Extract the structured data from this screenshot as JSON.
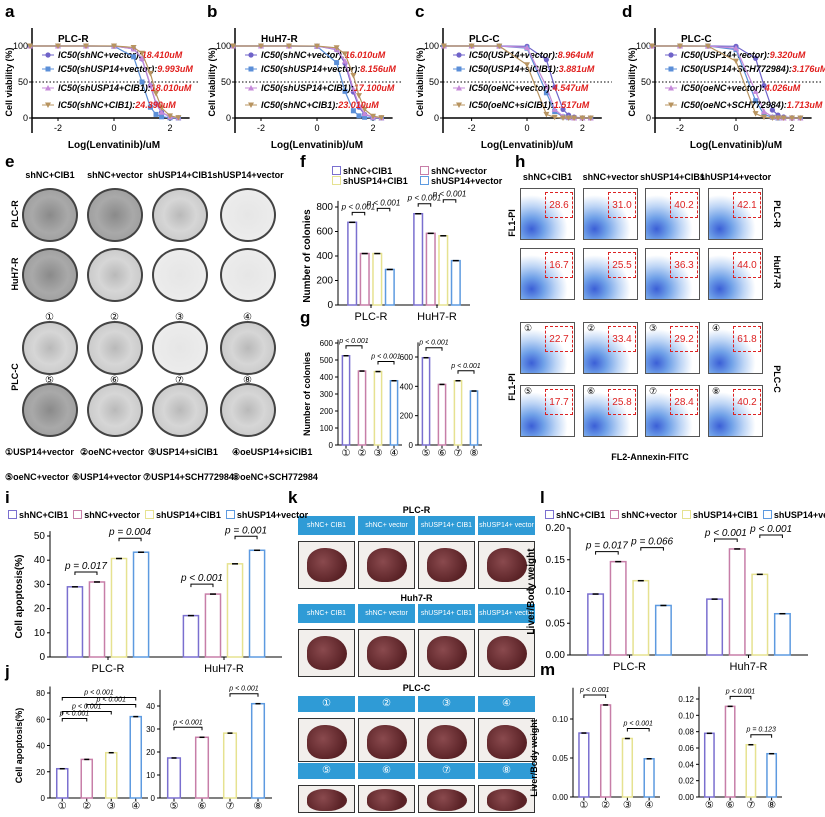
{
  "panel_labels": {
    "a": "a",
    "b": "b",
    "c": "c",
    "d": "d",
    "e": "e",
    "f": "f",
    "g": "g",
    "h": "h",
    "i": "i",
    "j": "j",
    "k": "k",
    "l": "l",
    "m": "m"
  },
  "chart_data": [
    {
      "id": "a",
      "type": "line",
      "title": "PLC-R",
      "xlabel": "Log(Lenvatinib)/uM",
      "ylabel": "Cell viability (%)",
      "xlim": [
        -3,
        2.7
      ],
      "ylim": [
        0,
        120
      ],
      "xticks": [
        "-2",
        "0",
        "2"
      ],
      "yticks": [
        "0",
        "50",
        "100"
      ],
      "reference_line": 50,
      "x": [
        -3,
        -2,
        -1,
        0,
        0.7,
        1,
        1.3,
        1.5,
        1.7,
        2,
        2.3
      ],
      "series": [
        {
          "name": "IC50(shNC+vector)",
          "ic50": "18.410uM",
          "color": "#6f63c9",
          "marker": "circle",
          "y": [
            100,
            100,
            100,
            99.9,
            96,
            82,
            45,
            20,
            8,
            1.5,
            0.3
          ]
        },
        {
          "name": "IC50(shUSP14+vector)",
          "ic50": "9.993uM",
          "color": "#5b8fd8",
          "marker": "square",
          "y": [
            100,
            100,
            100,
            99.7,
            85,
            50,
            15,
            5,
            1.7,
            0.3,
            0
          ]
        },
        {
          "name": "IC50(shUSP14+CIB1)",
          "ic50": "18.010uM",
          "color": "#c58ad9",
          "marker": "triangle-up",
          "y": [
            100,
            100,
            100,
            99.9,
            96,
            83,
            46,
            21,
            8,
            1.5,
            0.3
          ]
        },
        {
          "name": "IC50(shNC+CIB1)",
          "ic50": "24.390uM",
          "color": "#b89460",
          "marker": "triangle-down",
          "y": [
            100,
            100,
            100,
            100,
            98,
            90,
            62,
            34,
            14,
            3,
            0.5
          ]
        }
      ]
    },
    {
      "id": "b",
      "type": "line",
      "title": "HuH7-R",
      "xlabel": "Log(Lenvatinib)/uM",
      "ylabel": "Cell viability (%)",
      "xlim": [
        -3,
        2.7
      ],
      "ylim": [
        0,
        120
      ],
      "xticks": [
        "-2",
        "0",
        "2"
      ],
      "yticks": [
        "0",
        "50",
        "100"
      ],
      "reference_line": 50,
      "x": [
        -3,
        -2,
        -1,
        0,
        0.7,
        1,
        1.3,
        1.5,
        1.7,
        2,
        2.3
      ],
      "series": [
        {
          "name": "IC50(shNC+vector)",
          "ic50": "16.010uM",
          "color": "#6f63c9",
          "marker": "circle",
          "y": [
            100,
            100,
            100,
            99.9,
            95,
            76,
            36,
            15,
            5,
            1,
            0.2
          ]
        },
        {
          "name": "IC50(shUSP14+vector)",
          "ic50": "8.156uM",
          "color": "#5b8fd8",
          "marker": "square",
          "y": [
            100,
            100,
            100,
            99.5,
            77,
            37,
            10,
            3,
            1,
            0.2,
            0
          ]
        },
        {
          "name": "IC50(shUSP14+CIB1)",
          "ic50": "17.100uM",
          "color": "#c58ad9",
          "marker": "triangle-up",
          "y": [
            100,
            100,
            100,
            99.9,
            95.5,
            79,
            40,
            18,
            6,
            1,
            0.2
          ]
        },
        {
          "name": "IC50(shNC+CIB1)",
          "ic50": "23.010uM",
          "color": "#b89460",
          "marker": "triangle-down",
          "y": [
            100,
            100,
            100,
            99.9,
            97.5,
            89,
            59,
            31,
            12,
            2.5,
            0.5
          ]
        }
      ]
    },
    {
      "id": "c",
      "type": "line",
      "title": "PLC-C",
      "xlabel": "Log(Lenvatinib)/uM",
      "ylabel": "Cell viability (%)",
      "xlim": [
        -3,
        2.7
      ],
      "ylim": [
        0,
        120
      ],
      "xticks": [
        "-2",
        "0",
        "2"
      ],
      "yticks": [
        "0",
        "50",
        "100"
      ],
      "reference_line": 50,
      "x": [
        -3,
        -2,
        -1,
        0,
        0.7,
        1,
        1.3,
        1.5,
        1.7,
        2,
        2.3
      ],
      "series": [
        {
          "name": "IC50(USP14+vector)",
          "ic50": "8.964uM",
          "color": "#6f63c9",
          "marker": "circle",
          "y": [
            100,
            100,
            100,
            99.6,
            81,
            43,
            12,
            4,
            1.3,
            0.2,
            0
          ]
        },
        {
          "name": "IC50(USP14+siCIB1)",
          "ic50": "3.881uM",
          "color": "#5b8fd8",
          "marker": "square",
          "y": [
            100,
            100,
            99.9,
            97,
            35,
            9,
            1.6,
            0.5,
            0,
            0,
            0
          ]
        },
        {
          "name": "IC50(oeNC+vector)",
          "ic50": "4.547uM",
          "color": "#c58ad9",
          "marker": "triangle-up",
          "y": [
            100,
            100,
            99.9,
            98,
            44,
            12,
            2.4,
            0.8,
            0,
            0,
            0
          ]
        },
        {
          "name": "IC50(oeNC+siCIB1)",
          "ic50": "1.517uM",
          "color": "#b89460",
          "marker": "triangle-down",
          "y": [
            100,
            100,
            99.9,
            74,
            5,
            1,
            0,
            0,
            0,
            0,
            0
          ]
        }
      ]
    },
    {
      "id": "d",
      "type": "line",
      "title": "PLC-C",
      "xlabel": "Log(Lenvatinib)/uM",
      "ylabel": "Cell viability (%)",
      "xlim": [
        -3,
        2.7
      ],
      "ylim": [
        0,
        120
      ],
      "xticks": [
        "-2",
        "0",
        "2"
      ],
      "yticks": [
        "0",
        "50",
        "100"
      ],
      "reference_line": 50,
      "x": [
        -3,
        -2,
        -1,
        0,
        0.7,
        1,
        1.3,
        1.5,
        1.7,
        2,
        2.3
      ],
      "series": [
        {
          "name": "IC50(USP14+vector)",
          "ic50": "9.320uM",
          "color": "#6f63c9",
          "marker": "circle",
          "y": [
            100,
            100,
            100,
            99.6,
            83,
            45,
            11,
            4,
            1.5,
            0.3,
            0
          ]
        },
        {
          "name": "IC50(USP14+SCH772984)",
          "ic50": "3.176uM",
          "color": "#5b8fd8",
          "marker": "square",
          "y": [
            100,
            100,
            99.9,
            95,
            24,
            5,
            1,
            0,
            0,
            0,
            0
          ]
        },
        {
          "name": "IC50(oeNC+vector)",
          "ic50": "4.026uM",
          "color": "#c58ad9",
          "marker": "triangle-up",
          "y": [
            100,
            100,
            99.9,
            97,
            37,
            9,
            1.8,
            0.5,
            0,
            0,
            0
          ]
        },
        {
          "name": "IC50(oeNC+SCH772984)",
          "ic50": "1.713uM",
          "color": "#b89460",
          "marker": "triangle-down",
          "y": [
            100,
            100,
            99.9,
            79,
            6,
            1.2,
            0,
            0,
            0,
            0,
            0
          ]
        }
      ]
    },
    {
      "id": "f",
      "type": "bar",
      "ylabel": "Number of colonies",
      "ylim": [
        0,
        850
      ],
      "yticks": [
        0,
        200,
        400,
        600,
        800
      ],
      "categories": [
        "PLC-R",
        "HuH7-R"
      ],
      "legend": "top",
      "series": [
        {
          "name": "shNC+CIB1",
          "color": "#7a6fcf",
          "values": [
            675,
            745
          ]
        },
        {
          "name": "shNC+vector",
          "color": "#c77ea8",
          "values": [
            420,
            585
          ]
        },
        {
          "name": "shUSP14+CIB1",
          "color": "#e6e290",
          "values": [
            420,
            565
          ]
        },
        {
          "name": "shUSP14+vector",
          "color": "#5d9ae0",
          "values": [
            290,
            362
          ]
        }
      ],
      "comparisons": [
        {
          "group": 0,
          "bars": [
            0,
            1
          ],
          "label": "p < 0.001"
        },
        {
          "group": 0,
          "bars": [
            2,
            3
          ],
          "label": "p < 0.001"
        },
        {
          "group": 1,
          "bars": [
            0,
            1
          ],
          "label": "p < 0.001"
        },
        {
          "group": 1,
          "bars": [
            2,
            3
          ],
          "label": "p < 0.001"
        }
      ]
    },
    {
      "id": "g1",
      "type": "bar",
      "ylabel": "Number of colonies",
      "ylim": [
        0,
        620
      ],
      "yticks": [
        0,
        100,
        200,
        300,
        400,
        500,
        600
      ],
      "categories": [
        "①",
        "②",
        "③",
        "④"
      ],
      "bar_colors": [
        "#7a6fcf",
        "#c77ea8",
        "#e6e290",
        "#5d9ae0"
      ],
      "series": [
        {
          "values": [
            525,
            435,
            432,
            378
          ]
        }
      ],
      "comparisons": [
        {
          "bars": [
            0,
            1
          ],
          "label": "p < 0.001"
        },
        {
          "bars": [
            2,
            3
          ],
          "label": "p < 0.001"
        }
      ]
    },
    {
      "id": "g2",
      "type": "bar",
      "ylabel": "",
      "ylim": [
        0,
        700
      ],
      "yticks": [
        0,
        200,
        400,
        600
      ],
      "categories": [
        "⑤",
        "⑥",
        "⑦",
        "⑧"
      ],
      "bar_colors": [
        "#7a6fcf",
        "#c77ea8",
        "#e6e290",
        "#5d9ae0"
      ],
      "series": [
        {
          "values": [
            595,
            413,
            438,
            368
          ]
        }
      ],
      "comparisons": [
        {
          "bars": [
            0,
            1
          ],
          "label": "p < 0.001"
        },
        {
          "bars": [
            2,
            3
          ],
          "label": "p < 0.001"
        }
      ]
    },
    {
      "id": "i",
      "type": "bar",
      "ylabel": "Cell apoptosis(%)",
      "ylim": [
        0,
        52
      ],
      "yticks": [
        0,
        10,
        20,
        30,
        40,
        50
      ],
      "categories": [
        "PLC-R",
        "HuH7-R"
      ],
      "legend": "top",
      "series": [
        {
          "name": "shNC+CIB1",
          "color": "#7a6fcf",
          "values": [
            29,
            17.1
          ]
        },
        {
          "name": "shNC+vector",
          "color": "#c77ea8",
          "values": [
            31,
            26
          ]
        },
        {
          "name": "shUSP14+CIB1",
          "color": "#e6e290",
          "values": [
            40.7,
            38.5
          ]
        },
        {
          "name": "shUSP14+vector",
          "color": "#5d9ae0",
          "values": [
            43.3,
            44.1
          ]
        }
      ],
      "comparisons": [
        {
          "group": 0,
          "bars": [
            0,
            1
          ],
          "label": "p = 0.017"
        },
        {
          "group": 0,
          "bars": [
            2,
            3
          ],
          "label": "p = 0.004"
        },
        {
          "group": 1,
          "bars": [
            0,
            1
          ],
          "label": "p < 0.001"
        },
        {
          "group": 1,
          "bars": [
            2,
            3
          ],
          "label": "p = 0.001"
        }
      ]
    },
    {
      "id": "j1",
      "type": "bar",
      "ylabel": "Cell apoptosis(%)",
      "ylim": [
        0,
        85
      ],
      "yticks": [
        0,
        20,
        40,
        60,
        80
      ],
      "categories": [
        "①",
        "②",
        "③",
        "④"
      ],
      "bar_colors": [
        "#7a6fcf",
        "#c77ea8",
        "#e6e290",
        "#5d9ae0"
      ],
      "series": [
        {
          "values": [
            22.3,
            29.4,
            34.5,
            62
          ]
        }
      ],
      "comparisons": [
        {
          "bars": [
            0,
            1
          ],
          "label": "p < 0.001"
        },
        {
          "bars": [
            0,
            2
          ],
          "label": "p < 0.001"
        },
        {
          "bars": [
            1,
            3
          ],
          "label": "p < 0.001"
        },
        {
          "bars": [
            0,
            3
          ],
          "label": "p < 0.001"
        }
      ]
    },
    {
      "id": "j2",
      "type": "bar",
      "ylabel": "",
      "ylim": [
        0,
        47
      ],
      "yticks": [
        0,
        10,
        20,
        30,
        40
      ],
      "categories": [
        "⑤",
        "⑥",
        "⑦",
        "⑧"
      ],
      "bar_colors": [
        "#7a6fcf",
        "#c77ea8",
        "#e6e290",
        "#5d9ae0"
      ],
      "series": [
        {
          "values": [
            17.4,
            26.4,
            28.2,
            41
          ]
        }
      ],
      "comparisons": [
        {
          "bars": [
            0,
            1
          ],
          "label": "p < 0.001"
        },
        {
          "bars": [
            2,
            3
          ],
          "label": "p < 0.001"
        }
      ]
    },
    {
      "id": "l",
      "type": "bar",
      "ylabel": "Liver/Body weight",
      "ylim": [
        0,
        0.2
      ],
      "yticks": [
        "0.00",
        "0.05",
        "0.10",
        "0.15",
        "0.20"
      ],
      "categories": [
        "PLC-R",
        "Huh7-R"
      ],
      "legend": "top",
      "series": [
        {
          "name": "shNC+CIB1",
          "color": "#7a6fcf",
          "values": [
            0.096,
            0.088
          ]
        },
        {
          "name": "shNC+vector",
          "color": "#c77ea8",
          "values": [
            0.147,
            0.167
          ]
        },
        {
          "name": "shUSP14+CIB1",
          "color": "#e6e290",
          "values": [
            0.117,
            0.127
          ]
        },
        {
          "name": "shUSP14+vector",
          "color": "#5d9ae0",
          "values": [
            0.078,
            0.065
          ]
        }
      ],
      "comparisons": [
        {
          "group": 0,
          "bars": [
            0,
            1
          ],
          "label": "p = 0.017"
        },
        {
          "group": 0,
          "bars": [
            2,
            3
          ],
          "label": "p = 0.066"
        },
        {
          "group": 1,
          "bars": [
            0,
            1
          ],
          "label": "p < 0.001"
        },
        {
          "group": 1,
          "bars": [
            2,
            3
          ],
          "label": "p < 0.001"
        }
      ]
    },
    {
      "id": "m1",
      "type": "bar",
      "ylabel": "Liver/Body weight",
      "ylim": [
        0,
        0.14
      ],
      "yticks": [
        "0.00",
        "0.05",
        "0.10"
      ],
      "categories": [
        "①",
        "②",
        "③",
        "④"
      ],
      "bar_colors": [
        "#7a6fcf",
        "#c77ea8",
        "#e6e290",
        "#5d9ae0"
      ],
      "series": [
        {
          "values": [
            0.082,
            0.118,
            0.075,
            0.049
          ]
        }
      ],
      "comparisons": [
        {
          "bars": [
            0,
            1
          ],
          "label": "p < 0.001"
        },
        {
          "bars": [
            2,
            3
          ],
          "label": "p < 0.001"
        }
      ]
    },
    {
      "id": "m2",
      "type": "bar",
      "ylabel": "",
      "ylim": [
        0,
        0.135
      ],
      "yticks": [
        "0.00",
        "0.02",
        "0.04",
        "0.06",
        "0.08",
        "0.10",
        "0.12"
      ],
      "categories": [
        "⑤",
        "⑥",
        "⑦",
        "⑧"
      ],
      "bar_colors": [
        "#7a6fcf",
        "#c77ea8",
        "#e6e290",
        "#5d9ae0"
      ],
      "series": [
        {
          "values": [
            0.078,
            0.111,
            0.064,
            0.053
          ]
        }
      ],
      "comparisons": [
        {
          "bars": [
            1,
            2
          ],
          "label": "p < 0.001"
        },
        {
          "bars": [
            2,
            3
          ],
          "label": "p = 0.123"
        }
      ]
    }
  ],
  "colony": {
    "columns": [
      "shNC+CIB1",
      "shNC+vector",
      "shUSP14+CIB1",
      "shUSP14+vector"
    ],
    "rows": [
      "PLC-R",
      "HuH7-R",
      "PLC-C"
    ],
    "numbers": [
      "①",
      "②",
      "③",
      "④",
      "⑤",
      "⑥",
      "⑦",
      "⑧"
    ],
    "legend": [
      "①USP14+vector",
      "②oeNC+vector",
      "③USP14+siCIB1",
      "④oeUSP14+siCIB1",
      "⑤oeNC+vector",
      "⑥USP14+vector",
      "⑦USP14+SCH772984",
      "⑧oeNC+SCH772984"
    ]
  },
  "flow": {
    "columns": [
      "shNC+CIB1",
      "shNC+vector",
      "shUSP14+CIB1",
      "shUSP14+vector"
    ],
    "rows": [
      "PLC-R",
      "HuH7-R",
      "PLC-C"
    ],
    "ylabel": "FL1-PI",
    "xlabel": "FL2-Annexin-FITC",
    "numbers": [
      "①",
      "②",
      "③",
      "④",
      "⑤",
      "⑥",
      "⑦",
      "⑧"
    ],
    "values": [
      "28.6",
      "31.0",
      "40.2",
      "42.1",
      "16.7",
      "25.5",
      "36.3",
      "44.0",
      "22.7",
      "33.4",
      "29.2",
      "61.8",
      "17.7",
      "25.8",
      "28.4",
      "40.2"
    ]
  },
  "liver": {
    "sections": [
      "PLC-R",
      "Huh7-R",
      "PLC-C"
    ],
    "headers": [
      "shNC+ CIB1",
      "shNC+ vector",
      "shUSP14+ CIB1",
      "shUSP14+ vector"
    ],
    "numbers": [
      "①",
      "②",
      "③",
      "④",
      "⑤",
      "⑥",
      "⑦",
      "⑧"
    ]
  }
}
